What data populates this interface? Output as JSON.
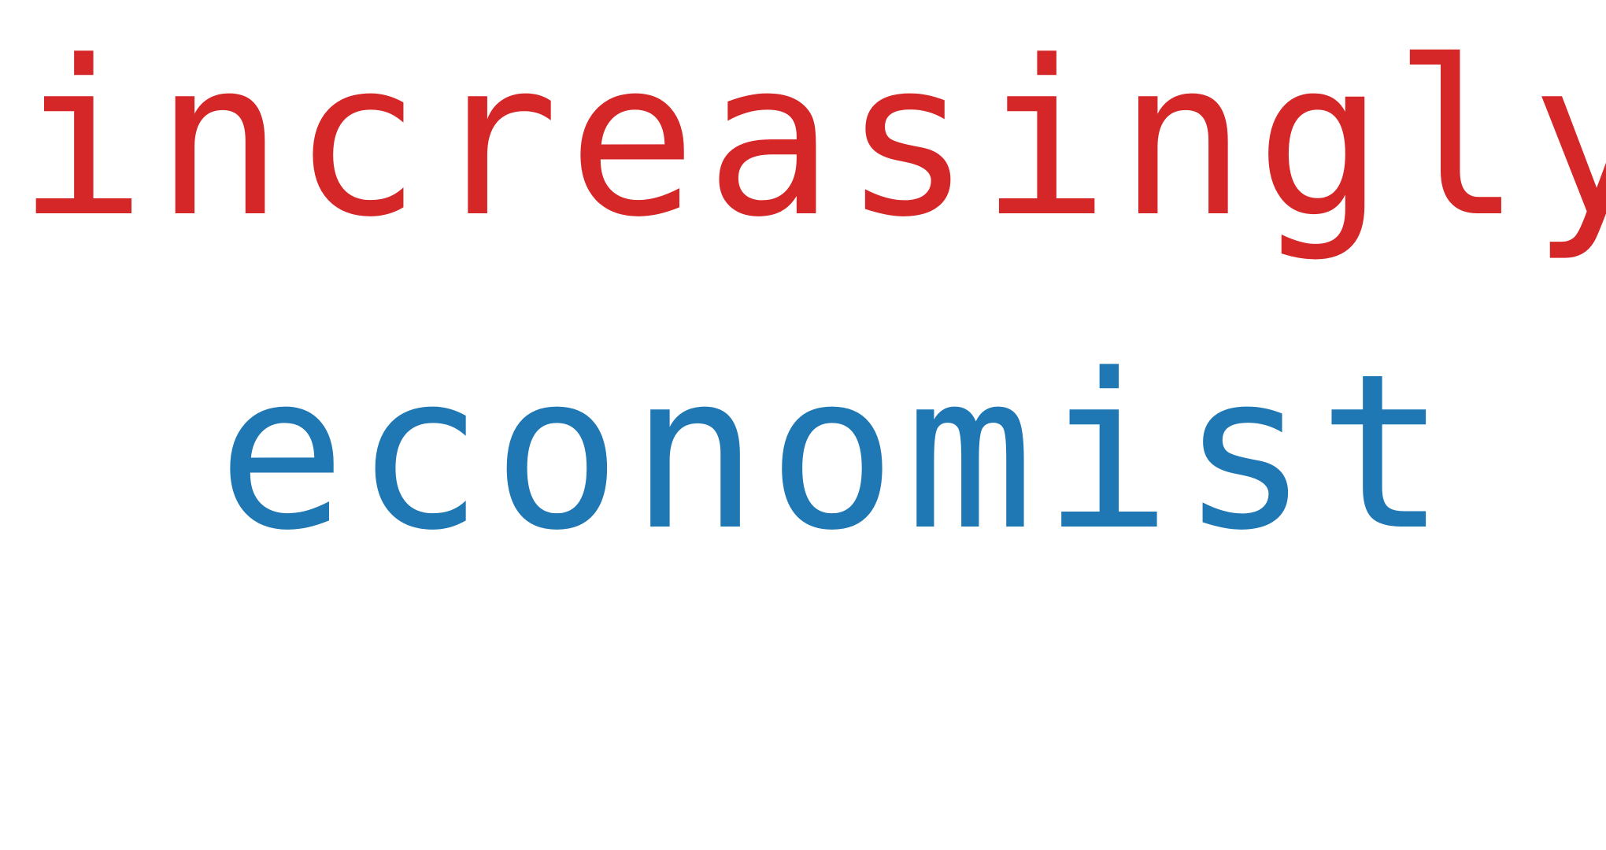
{
  "words": [
    {
      "text": "increasingly",
      "color": "#d62728"
    },
    {
      "text": "economist",
      "color": "#1f77b4"
    }
  ]
}
